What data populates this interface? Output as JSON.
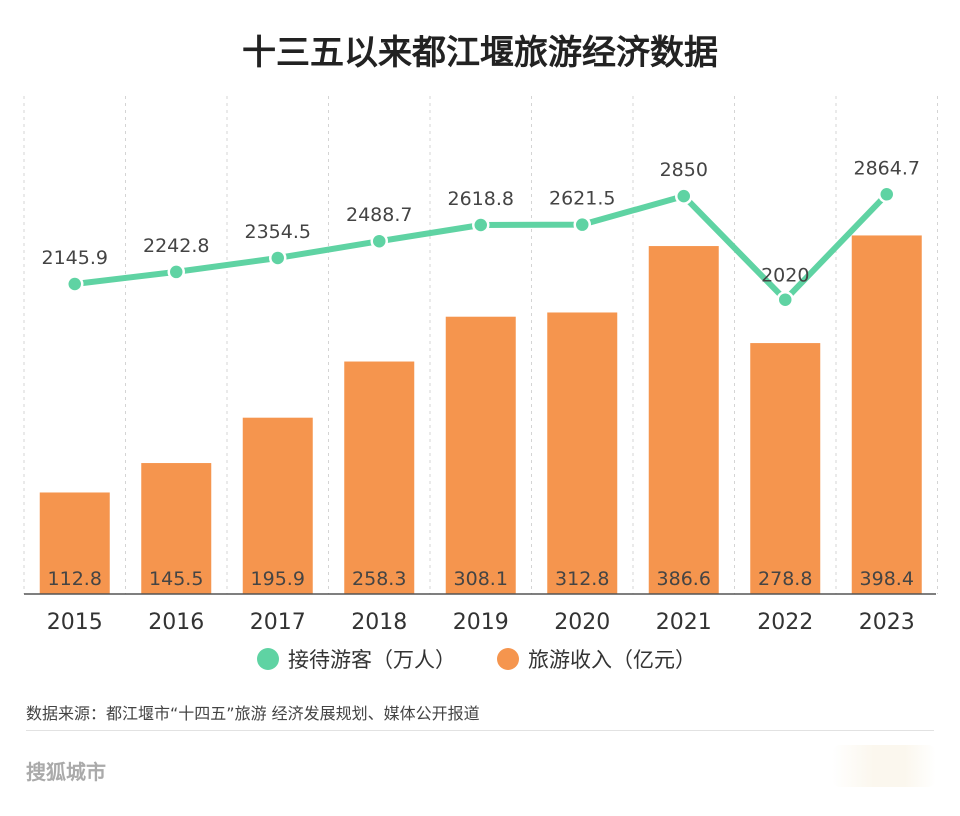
{
  "chart_data": {
    "type": "bar+line",
    "title": "十三五以来都江堰旅游经济数据",
    "categories": [
      "2015",
      "2016",
      "2017",
      "2018",
      "2019",
      "2020",
      "2021",
      "2022",
      "2023"
    ],
    "series": [
      {
        "name": "旅游收入（亿元）",
        "type": "bar",
        "values": [
          112.8,
          145.5,
          195.9,
          258.3,
          308.1,
          312.8,
          386.6,
          278.8,
          398.4
        ],
        "labels": [
          "112.8",
          "145.5",
          "195.9",
          "258.3",
          "308.1",
          "312.8",
          "386.6",
          "278.8",
          "398.4"
        ],
        "color": "#F5954E"
      },
      {
        "name": "接待游客（万人）",
        "type": "line",
        "values": [
          2145.9,
          2242.8,
          2354.5,
          2488.7,
          2618.8,
          2621.5,
          2850,
          2020,
          2864.7
        ],
        "labels": [
          "2145.9",
          "2242.8",
          "2354.5",
          "2488.7",
          "2618.8",
          "2621.5",
          "2850",
          "2020",
          "2864.7"
        ],
        "color": "#5FD3A3"
      }
    ],
    "bar_ylim": [
      0,
      450
    ],
    "line_ylim": [
      1000,
      3270
    ],
    "grid": "vertical dashed",
    "legend_position": "bottom"
  },
  "source_text": "数据来源：都江堰市“十四五”旅游 经济发展规划、媒体公开报道",
  "brand_text": "搜狐城市"
}
